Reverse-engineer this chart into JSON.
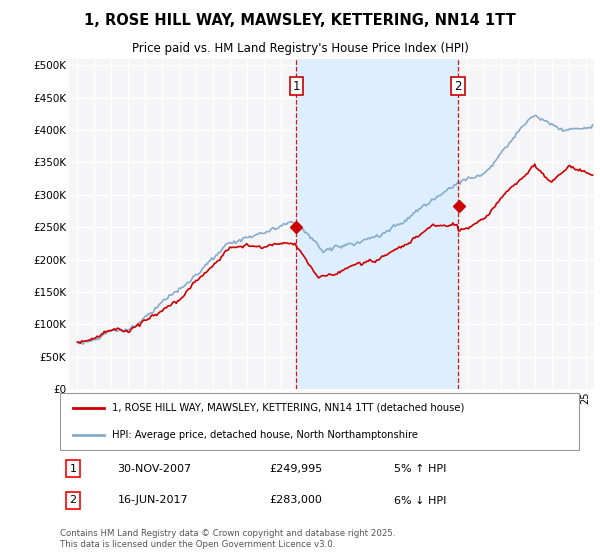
{
  "title_line1": "1, ROSE HILL WAY, MAWSLEY, KETTERING, NN14 1TT",
  "title_line2": "Price paid vs. HM Land Registry's House Price Index (HPI)",
  "background_color": "#ffffff",
  "plot_bg_color": "#f5f5f8",
  "band_color": "#ddeeff",
  "line1_color": "#cc0000",
  "line2_color": "#88aacc",
  "vline_color": "#cc0000",
  "ylim": [
    0,
    510000
  ],
  "yticks": [
    0,
    50000,
    100000,
    150000,
    200000,
    250000,
    300000,
    350000,
    400000,
    450000,
    500000
  ],
  "ytick_labels": [
    "£0",
    "£50K",
    "£100K",
    "£150K",
    "£200K",
    "£250K",
    "£300K",
    "£350K",
    "£400K",
    "£450K",
    "£500K"
  ],
  "annotation1": {
    "label": "1",
    "date_str": "30-NOV-2007",
    "price": "£249,995",
    "pct": "5% ↑ HPI",
    "x": 2007.92
  },
  "annotation2": {
    "label": "2",
    "date_str": "16-JUN-2017",
    "price": "£283,000",
    "pct": "6% ↓ HPI",
    "x": 2017.46
  },
  "legend_line1": "1, ROSE HILL WAY, MAWSLEY, KETTERING, NN14 1TT (detached house)",
  "legend_line2": "HPI: Average price, detached house, North Northamptonshire",
  "footer": "Contains HM Land Registry data © Crown copyright and database right 2025.\nThis data is licensed under the Open Government Licence v3.0.",
  "xmin": 1994.5,
  "xmax": 2025.5
}
